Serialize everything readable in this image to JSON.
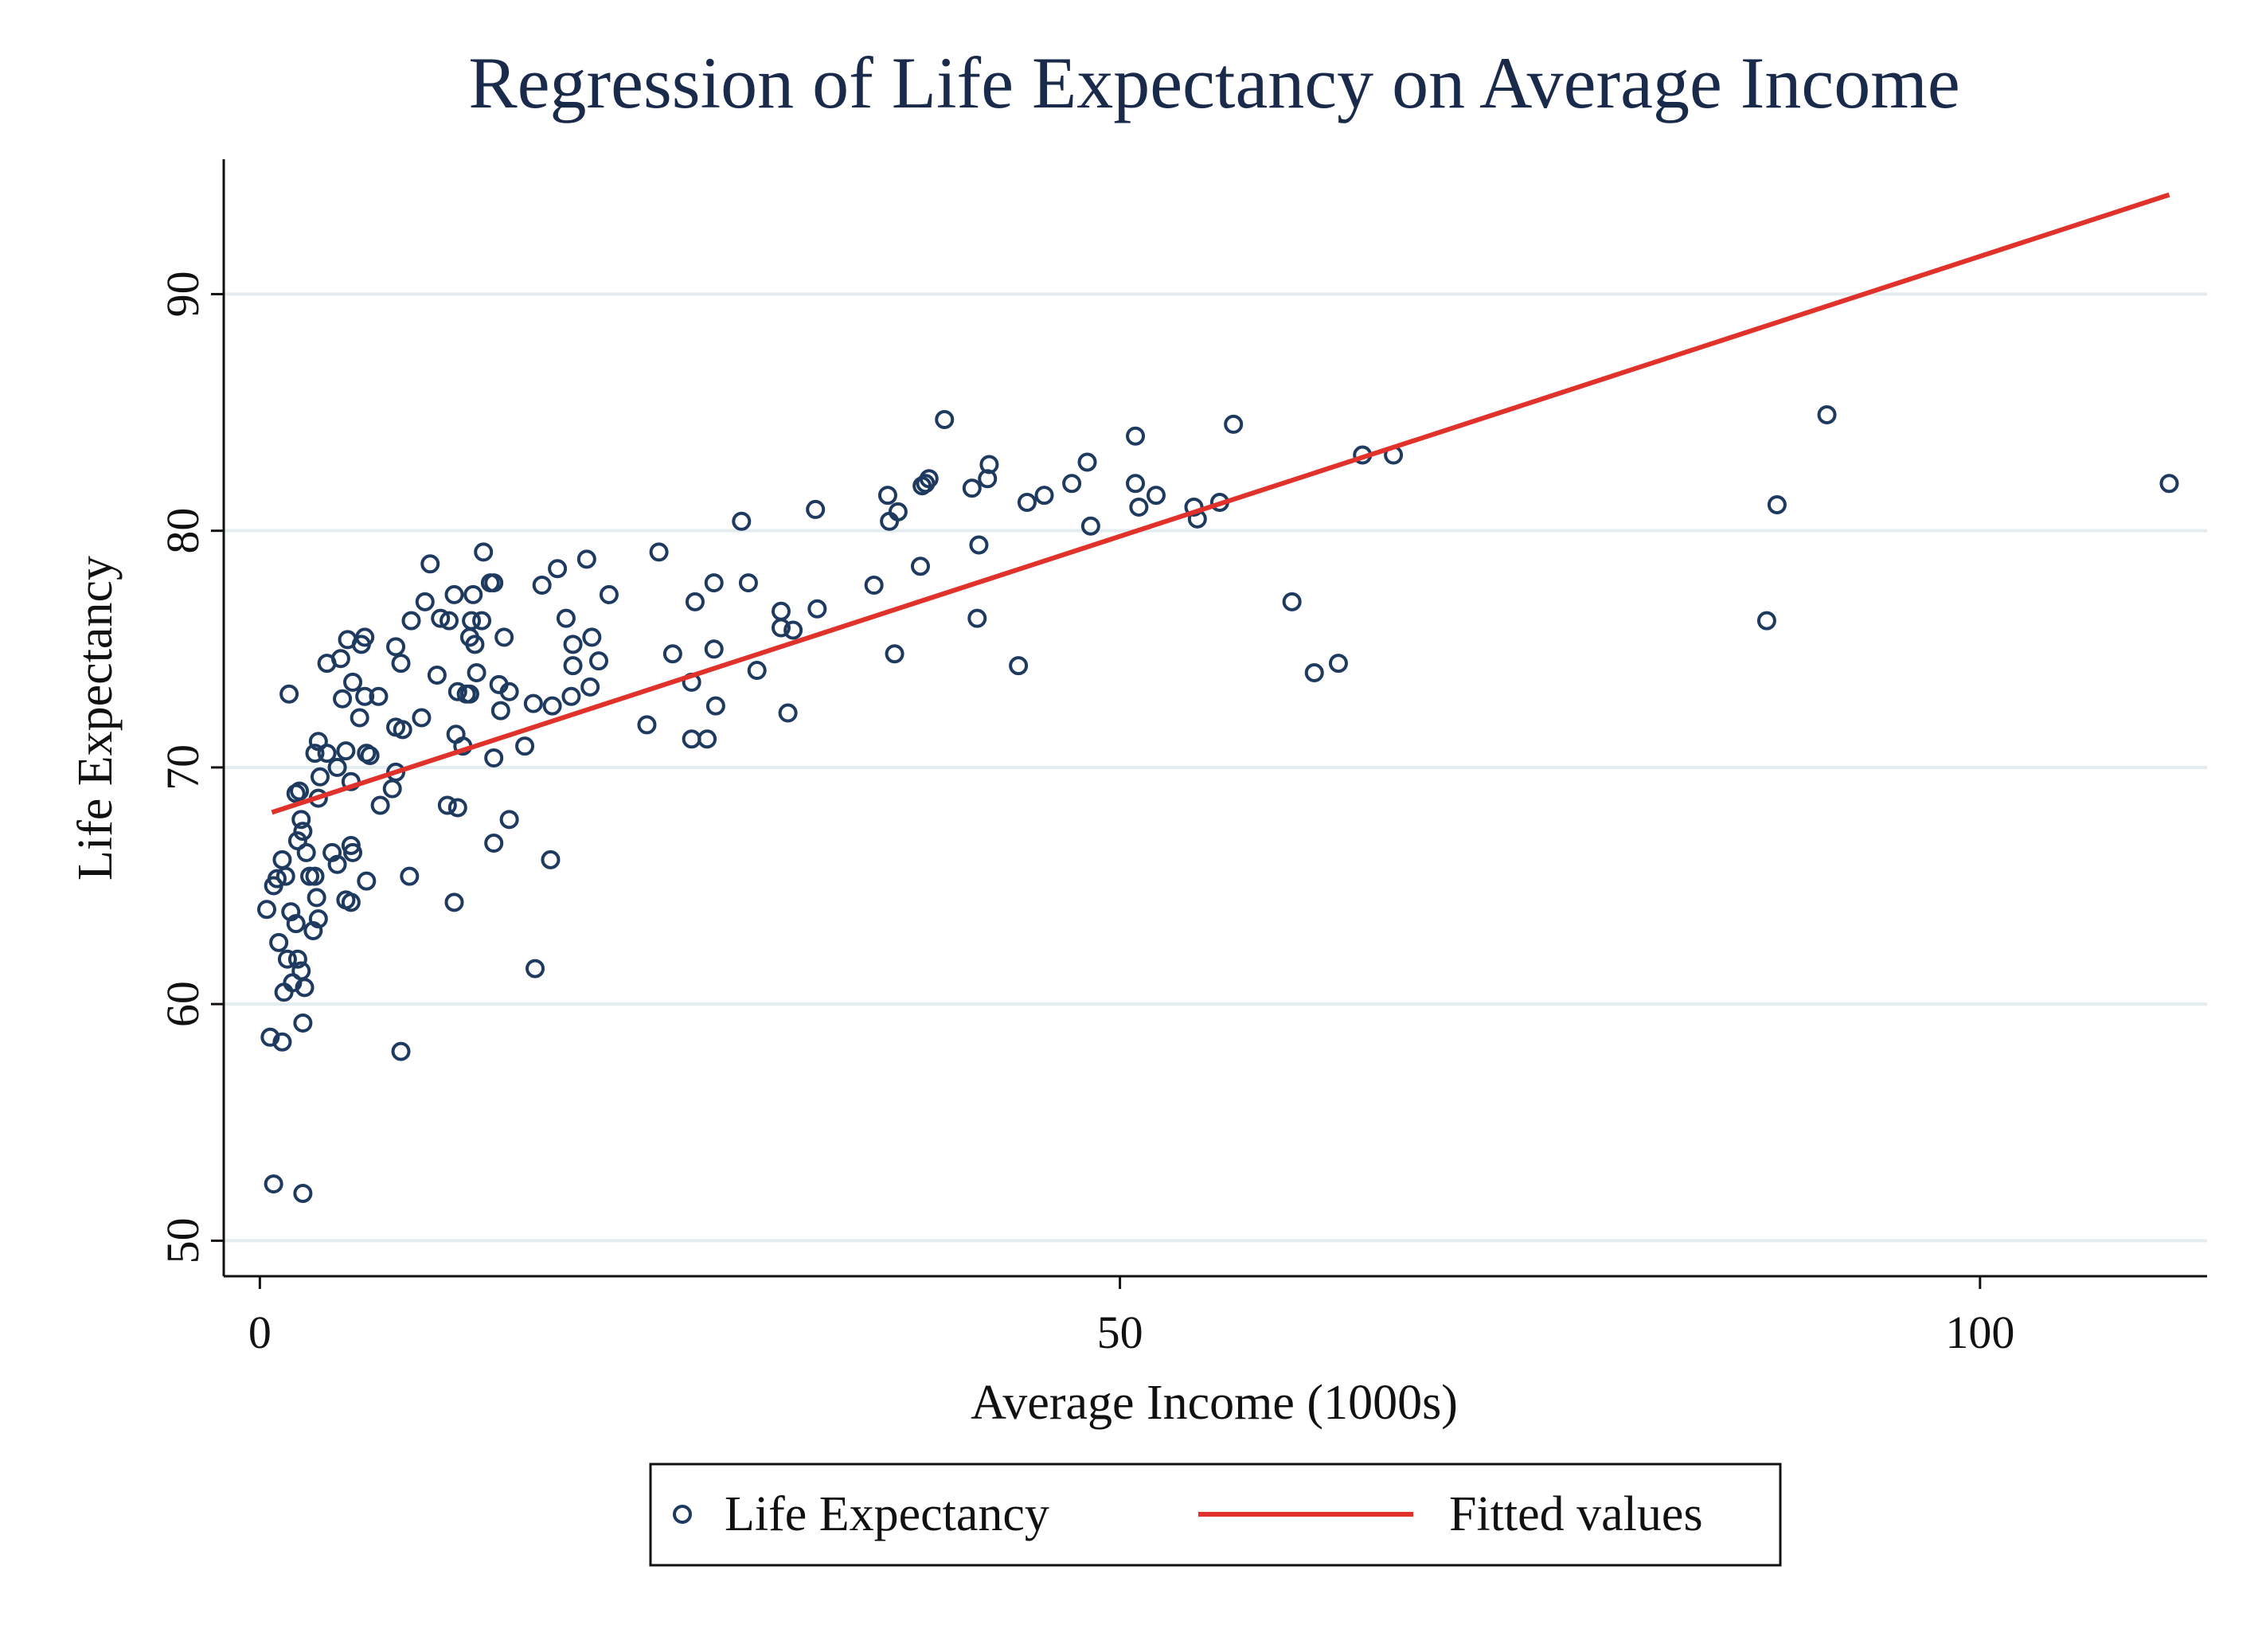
{
  "chart_data": {
    "type": "scatter",
    "title": "Regression of Life Expectancy on Average Income",
    "xlabel": "Average Income (1000s)",
    "ylabel": "Life Expectancy",
    "xlim": [
      -2.1,
      113.2
    ],
    "xticks": [
      0,
      50,
      100
    ],
    "ylim": [
      48.5,
      95.7
    ],
    "yticks": [
      50,
      60,
      70,
      80,
      90
    ],
    "grid": true,
    "legend": "bottom",
    "series": [
      {
        "name": "Life Expectancy",
        "type": "scatter",
        "color": "#1f3a5f",
        "x": [
          0.4,
          0.8,
          1.0,
          1.3,
          1.5,
          1.1,
          1.6,
          1.4,
          1.9,
          2.2,
          2.4,
          2.6,
          2.5,
          0.6,
          1.3,
          0.8,
          2.5,
          1.7,
          2.1,
          1.8,
          2.2,
          2.4,
          2.5,
          2.1,
          2.3,
          2.7,
          2.9,
          3.2,
          3.4,
          3.5,
          3.4,
          3.2,
          3.3,
          3.1,
          3.4,
          3.9,
          3.9,
          4.7,
          4.5,
          4.2,
          4.5,
          4.8,
          5.0,
          5.1,
          5.4,
          5.3,
          5.3,
          5.4,
          5.0,
          5.3,
          5.8,
          5.9,
          6.1,
          6.1,
          6.2,
          6.4,
          6.2,
          6.9,
          7.0,
          7.9,
          8.2,
          7.9,
          8.3,
          7.9,
          7.7,
          8.2,
          8.7,
          8.8,
          9.4,
          9.6,
          9.9,
          10.3,
          10.5,
          11.0,
          10.9,
          11.3,
          11.5,
          11.4,
          11.5,
          11.3,
          11.8,
          12.0,
          12.2,
          12.2,
          12.3,
          12.4,
          12.5,
          12.6,
          12.9,
          13.0,
          13.4,
          13.6,
          13.6,
          13.6,
          13.9,
          14.0,
          14.2,
          14.5,
          14.5,
          15.4,
          15.9,
          16.0,
          16.4,
          17.0,
          17.3,
          16.9,
          17.8,
          18.1,
          18.2,
          18.2,
          19.0,
          19.2,
          19.3,
          19.7,
          20.3,
          22.5,
          23.2,
          24.0,
          25.1,
          25.3,
          25.1,
          26.0,
          26.4,
          26.4,
          26.5,
          28.0,
          28.4,
          28.9,
          30.3,
          30.3,
          30.7,
          31.0,
          32.3,
          32.4,
          35.7,
          36.5,
          36.6,
          37.1,
          36.9,
          38.4,
          38.5,
          38.7,
          38.9,
          39.8,
          41.4,
          41.8,
          41.7,
          42.3,
          42.4,
          44.1,
          44.6,
          45.6,
          47.2,
          48.1,
          48.3,
          50.9,
          50.9,
          51.1,
          52.1,
          54.3,
          54.5,
          55.8,
          56.6,
          60.0,
          61.3,
          62.7,
          64.1,
          65.9,
          87.6,
          88.2,
          91.1,
          111.0
        ],
        "values": [
          64.0,
          65.0,
          65.3,
          66.1,
          65.4,
          62.6,
          61.9,
          60.5,
          60.9,
          61.9,
          61.4,
          60.7,
          59.2,
          58.6,
          58.4,
          52.4,
          52.0,
          73.1,
          63.4,
          63.9,
          66.9,
          67.8,
          67.3,
          68.9,
          69.0,
          66.4,
          65.4,
          70.6,
          71.1,
          69.6,
          68.7,
          65.4,
          64.5,
          63.1,
          63.6,
          70.6,
          74.4,
          74.6,
          70.0,
          66.4,
          65.9,
          72.9,
          70.7,
          75.4,
          73.6,
          69.4,
          66.7,
          66.4,
          64.4,
          64.3,
          72.1,
          75.2,
          75.5,
          73.0,
          70.6,
          70.5,
          65.2,
          73.0,
          68.4,
          75.1,
          74.4,
          71.7,
          71.6,
          69.8,
          69.1,
          58.0,
          65.4,
          76.2,
          72.1,
          77.0,
          78.6,
          73.9,
          76.3,
          76.2,
          68.4,
          77.3,
          73.2,
          71.4,
          68.3,
          64.3,
          70.9,
          73.1,
          73.1,
          75.5,
          76.2,
          77.3,
          75.2,
          74.0,
          76.2,
          79.1,
          77.8,
          77.8,
          70.4,
          66.8,
          73.5,
          72.4,
          75.5,
          73.2,
          67.8,
          70.9,
          72.7,
          61.5,
          77.7,
          72.6,
          78.4,
          66.1,
          76.3,
          73.0,
          75.2,
          74.3,
          78.8,
          73.4,
          75.5,
          74.5,
          77.3,
          71.8,
          79.1,
          74.8,
          73.6,
          77.0,
          71.2,
          71.2,
          77.8,
          75.0,
          72.6,
          80.4,
          77.8,
          74.1,
          76.6,
          75.9,
          72.3,
          75.8,
          80.9,
          76.7,
          77.7,
          81.5,
          80.4,
          80.8,
          74.8,
          78.5,
          81.9,
          82.0,
          82.2,
          84.7,
          81.8,
          79.4,
          76.3,
          82.2,
          82.8,
          74.3,
          81.2,
          81.5,
          82.0,
          82.9,
          80.2,
          84.0,
          82.0,
          81.0,
          81.5,
          81.0,
          80.5,
          81.2,
          84.5,
          77.0,
          74.0,
          74.4,
          83.2,
          83.2,
          76.2,
          81.1,
          84.9,
          82.0
        ]
      },
      {
        "name": "Fitted values",
        "type": "line",
        "color": "#e0312b",
        "x": [
          0.7,
          111.0
        ],
        "values": [
          68.1,
          94.2
        ]
      }
    ]
  }
}
